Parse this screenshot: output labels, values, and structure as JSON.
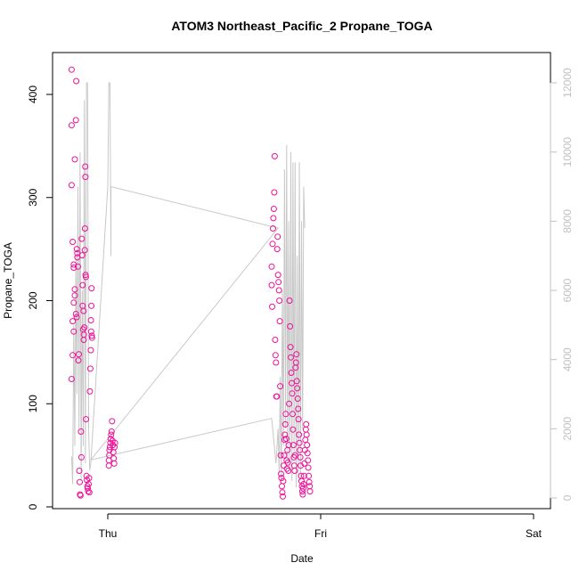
{
  "chart_data": {
    "type": "scatter",
    "title": "ATOM3 Northeast_Pacific_2 Propane_TOGA",
    "xlabel": "Date",
    "ylabel": "Propane_TOGA",
    "x_ticks": [
      "Thu",
      "Fri",
      "Sat"
    ],
    "ylim": [
      0,
      440
    ],
    "y_ticks": [
      "0",
      "100",
      "200",
      "300",
      "400"
    ],
    "y2_ticks": [
      "0",
      "2000",
      "4000",
      "6000",
      "8000",
      "10000",
      "12000"
    ],
    "y2lim": [
      0,
      13000
    ],
    "colors": {
      "points": "#ee1199",
      "line": "#c8c8c8",
      "right_axis": "#c0c0c0"
    },
    "series": [
      {
        "type": "scatter",
        "points": [
          [
            -0.17,
            124
          ],
          [
            -0.17,
            312
          ],
          [
            -0.17,
            370
          ],
          [
            -0.17,
            424
          ],
          [
            -0.165,
            257
          ],
          [
            -0.165,
            147
          ],
          [
            -0.165,
            180
          ],
          [
            -0.16,
            235
          ],
          [
            -0.16,
            232
          ],
          [
            -0.16,
            170
          ],
          [
            -0.16,
            198
          ],
          [
            -0.155,
            337
          ],
          [
            -0.155,
            205
          ],
          [
            -0.155,
            211
          ],
          [
            -0.15,
            187
          ],
          [
            -0.15,
            375
          ],
          [
            -0.148,
            413
          ],
          [
            -0.146,
            184
          ],
          [
            -0.145,
            250
          ],
          [
            -0.143,
            246
          ],
          [
            -0.143,
            242
          ],
          [
            -0.14,
            233
          ],
          [
            -0.138,
            142
          ],
          [
            -0.136,
            148
          ],
          [
            -0.134,
            35
          ],
          [
            -0.132,
            24
          ],
          [
            -0.13,
            12
          ],
          [
            -0.128,
            11
          ],
          [
            -0.126,
            73
          ],
          [
            -0.124,
            48
          ],
          [
            -0.122,
            260
          ],
          [
            -0.12,
            244
          ],
          [
            -0.118,
            215
          ],
          [
            -0.118,
            195
          ],
          [
            -0.116,
            172
          ],
          [
            -0.114,
            190
          ],
          [
            -0.113,
            162
          ],
          [
            -0.112,
            167
          ],
          [
            -0.11,
            174
          ],
          [
            -0.108,
            249
          ],
          [
            -0.107,
            270
          ],
          [
            -0.106,
            330
          ],
          [
            -0.105,
            320
          ],
          [
            -0.104,
            225
          ],
          [
            -0.103,
            223
          ],
          [
            -0.102,
            85
          ],
          [
            -0.1,
            30
          ],
          [
            -0.098,
            26
          ],
          [
            -0.096,
            20
          ],
          [
            -0.094,
            18
          ],
          [
            -0.092,
            15
          ],
          [
            -0.09,
            22
          ],
          [
            -0.088,
            28
          ],
          [
            -0.086,
            14
          ],
          [
            -0.084,
            112
          ],
          [
            -0.082,
            134
          ],
          [
            -0.08,
            152
          ],
          [
            -0.079,
            181
          ],
          [
            -0.078,
            170
          ],
          [
            -0.077,
            195
          ],
          [
            -0.076,
            212
          ],
          [
            -0.075,
            166
          ],
          [
            -0.074,
            164
          ],
          [
            0.005,
            40
          ],
          [
            0.005,
            45
          ],
          [
            0.007,
            50
          ],
          [
            0.008,
            55
          ],
          [
            0.01,
            58
          ],
          [
            0.012,
            62
          ],
          [
            0.014,
            66
          ],
          [
            0.016,
            70
          ],
          [
            0.018,
            73
          ],
          [
            0.02,
            83
          ],
          [
            0.022,
            64
          ],
          [
            0.024,
            60
          ],
          [
            0.026,
            53
          ],
          [
            0.028,
            47
          ],
          [
            0.03,
            42
          ],
          [
            0.032,
            58
          ],
          [
            0.034,
            62
          ],
          [
            0.77,
            215
          ],
          [
            0.77,
            233
          ],
          [
            0.772,
            194
          ],
          [
            0.774,
            255
          ],
          [
            0.776,
            270
          ],
          [
            0.778,
            280
          ],
          [
            0.78,
            289
          ],
          [
            0.782,
            305
          ],
          [
            0.784,
            340
          ],
          [
            0.786,
            162
          ],
          [
            0.788,
            147
          ],
          [
            0.79,
            140
          ],
          [
            0.792,
            107
          ],
          [
            0.794,
            107
          ],
          [
            0.796,
            250
          ],
          [
            0.798,
            262
          ],
          [
            0.8,
            225
          ],
          [
            0.802,
            218
          ],
          [
            0.804,
            210
          ],
          [
            0.806,
            200
          ],
          [
            0.808,
            180
          ],
          [
            0.81,
            117
          ],
          [
            0.812,
            50
          ],
          [
            0.814,
            32
          ],
          [
            0.816,
            28
          ],
          [
            0.818,
            20
          ],
          [
            0.82,
            14
          ],
          [
            0.822,
            10
          ],
          [
            0.824,
            25
          ],
          [
            0.826,
            40
          ],
          [
            0.828,
            50
          ],
          [
            0.83,
            65
          ],
          [
            0.832,
            70
          ],
          [
            0.834,
            80
          ],
          [
            0.836,
            90
          ],
          [
            0.838,
            66
          ],
          [
            0.84,
            45
          ],
          [
            0.842,
            37
          ],
          [
            0.844,
            55
          ],
          [
            0.846,
            43
          ],
          [
            0.848,
            35
          ],
          [
            0.85,
            60
          ],
          [
            0.852,
            100
          ],
          [
            0.854,
            200
          ],
          [
            0.856,
            175
          ],
          [
            0.858,
            155
          ],
          [
            0.86,
            145
          ],
          [
            0.862,
            130
          ],
          [
            0.864,
            120
          ],
          [
            0.866,
            110
          ],
          [
            0.868,
            90
          ],
          [
            0.87,
            75
          ],
          [
            0.872,
            60
          ],
          [
            0.874,
            48
          ],
          [
            0.876,
            40
          ],
          [
            0.878,
            35
          ],
          [
            0.88,
            50
          ],
          [
            0.882,
            135
          ],
          [
            0.884,
            140
          ],
          [
            0.886,
            148
          ],
          [
            0.888,
            122
          ],
          [
            0.89,
            115
          ],
          [
            0.892,
            105
          ],
          [
            0.894,
            95
          ],
          [
            0.896,
            85
          ],
          [
            0.898,
            70
          ],
          [
            0.9,
            62
          ],
          [
            0.902,
            55
          ],
          [
            0.904,
            48
          ],
          [
            0.906,
            40
          ],
          [
            0.908,
            30
          ],
          [
            0.91,
            25
          ],
          [
            0.912,
            20
          ],
          [
            0.914,
            15
          ],
          [
            0.916,
            12
          ],
          [
            0.918,
            18
          ],
          [
            0.92,
            22
          ],
          [
            0.922,
            30
          ],
          [
            0.924,
            42
          ],
          [
            0.926,
            55
          ],
          [
            0.928,
            65
          ],
          [
            0.93,
            75
          ],
          [
            0.932,
            80
          ],
          [
            0.934,
            70
          ],
          [
            0.936,
            60
          ],
          [
            0.938,
            52
          ],
          [
            0.94,
            45
          ],
          [
            0.942,
            38
          ],
          [
            0.944,
            30
          ],
          [
            0.946,
            24
          ],
          [
            0.948,
            20
          ],
          [
            0.95,
            15
          ]
        ]
      },
      {
        "type": "line",
        "points": [
          [
            -0.17,
            1200
          ],
          [
            -0.165,
            400
          ],
          [
            -0.16,
            5000
          ],
          [
            -0.155,
            1500
          ],
          [
            -0.15,
            7000
          ],
          [
            -0.145,
            3000
          ],
          [
            -0.14,
            9000
          ],
          [
            -0.135,
            2000
          ],
          [
            -0.13,
            10000
          ],
          [
            -0.125,
            500
          ],
          [
            -0.12,
            6000
          ],
          [
            -0.115,
            1500
          ],
          [
            -0.11,
            11500
          ],
          [
            -0.105,
            1000
          ],
          [
            -0.1,
            12000
          ],
          [
            -0.095,
            12000
          ],
          [
            -0.09,
            2000
          ],
          [
            -0.085,
            800
          ],
          [
            -0.08,
            1000
          ],
          [
            0.0,
            9000
          ],
          [
            0.005,
            12000
          ],
          [
            0.01,
            12000
          ],
          [
            0.015,
            7000
          ],
          [
            0.015,
            9000
          ],
          [
            0.8,
            7800
          ],
          [
            -0.08,
            1100
          ],
          [
            0.77,
            2300
          ],
          [
            0.79,
            1000
          ],
          [
            0.8,
            2000
          ],
          [
            0.805,
            700
          ],
          [
            0.81,
            3500
          ],
          [
            0.815,
            500
          ],
          [
            0.82,
            6000
          ],
          [
            0.825,
            1500
          ],
          [
            0.83,
            9500
          ],
          [
            0.835,
            2000
          ],
          [
            0.84,
            10200
          ],
          [
            0.845,
            1000
          ],
          [
            0.85,
            8000
          ],
          [
            0.855,
            800
          ],
          [
            0.86,
            10000
          ],
          [
            0.865,
            500
          ],
          [
            0.87,
            9700
          ],
          [
            0.875,
            1200
          ],
          [
            0.88,
            9700
          ],
          [
            0.885,
            300
          ],
          [
            0.89,
            7000
          ],
          [
            0.895,
            600
          ],
          [
            0.9,
            9700
          ],
          [
            0.905,
            500
          ],
          [
            0.91,
            8000
          ],
          [
            0.915,
            2000
          ],
          [
            0.92,
            9000
          ],
          [
            0.925,
            7800
          ]
        ]
      }
    ]
  }
}
